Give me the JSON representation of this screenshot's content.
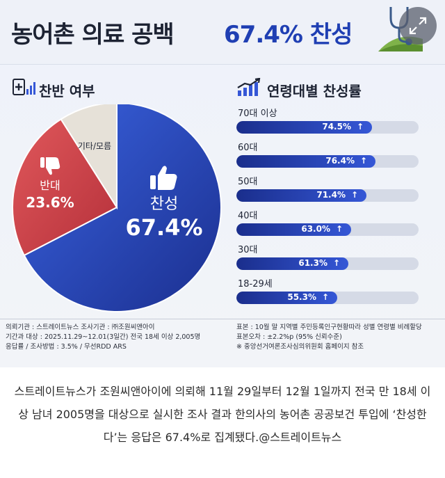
{
  "title": {
    "main": "농어촌 의료 공백",
    "accent": "67.4% 찬성"
  },
  "sections": {
    "pie": "찬반 여부",
    "bars": "연령대별 찬성률"
  },
  "icons": {
    "doctor": "stethoscope-icon",
    "expand": "expand-icon",
    "pie_head": "medical-chart-icon",
    "bar_head": "growth-chart-icon",
    "thumbs_up": "thumbs-up-icon",
    "thumbs_down": "thumbs-down-icon"
  },
  "colors": {
    "agree": "#2a47c2",
    "disagree": "#d8454a",
    "other": "#e6e1d8",
    "bar": "#2541b8",
    "title_accent": "#1f3fb3"
  },
  "chart_data": [
    {
      "type": "pie",
      "slices": [
        {
          "label": "찬성",
          "value": 67.4,
          "display": "67.4%"
        },
        {
          "label": "반대",
          "value": 23.6,
          "display": "23.6%"
        },
        {
          "label": "기타/모름",
          "value": 9.0,
          "display": ""
        }
      ]
    },
    {
      "type": "bar",
      "orientation": "horizontal",
      "categories": [
        "70대 이상",
        "60대",
        "50대",
        "40대",
        "30대",
        "18-29세"
      ],
      "values": [
        74.5,
        76.4,
        71.4,
        63.0,
        61.3,
        55.3
      ],
      "labels": [
        "74.5%",
        "76.4%",
        "71.4%",
        "63.0%",
        "61.3%",
        "55.3%"
      ],
      "xlim": [
        0,
        100
      ]
    }
  ],
  "meta": {
    "left": [
      "의뢰기관 : 스트레이트뉴스          조사기관 : ㈜조원씨앤아이",
      "기간과 대상 : 2025.11.29~12.01(3일간)   전국 18세 이상  2,005명",
      "응답률 / 조사방법 : 3.5% / 무선RDD ARS"
    ],
    "right": [
      "표본 : 10월 말 지역별 주민등록인구현황따라 성별 연령별 비례할당",
      "표본오차 : ±2.2%p (95% 신뢰수준)",
      "※ 중앙선거여론조사심의위원회 홈페이지 참조"
    ]
  },
  "caption": "스트레이트뉴스가 조원씨앤아이에 의뢰해 11월 29일부터 12월 1일까지 전국 만 18세 이상 남녀 2005명을 대상으로 실시한 조사 결과 한의사의 농어촌 공공보건 투입에 ‘찬성한다’는 응답은 67.4%로 집계됐다.@스트레이트뉴스"
}
